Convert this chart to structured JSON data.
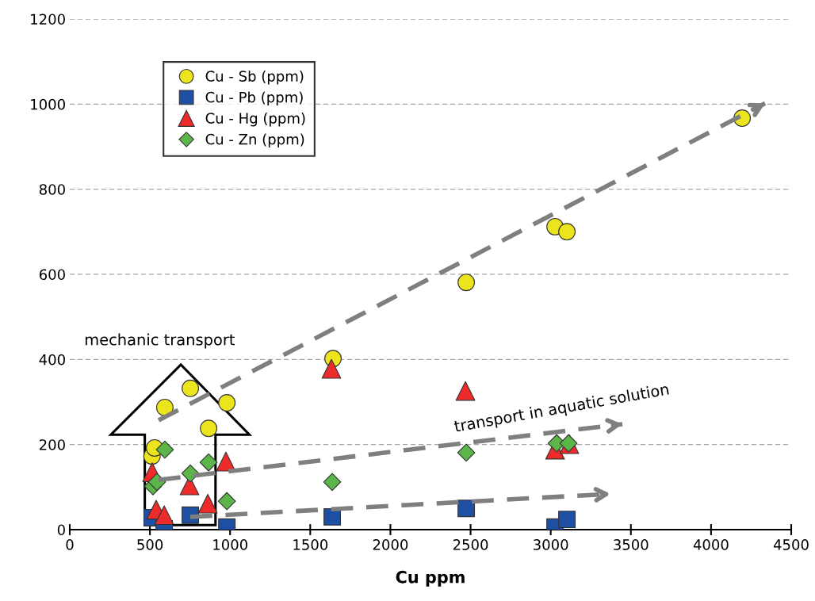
{
  "chart_data": {
    "type": "scatter",
    "xlabel": "Cu ppm",
    "xlim": [
      0,
      4500
    ],
    "xticks": [
      0,
      500,
      1000,
      1500,
      2000,
      2500,
      3000,
      3500,
      4000,
      4500
    ],
    "ylim": [
      0,
      1200
    ],
    "yticks": [
      0,
      200,
      400,
      600,
      800,
      1000,
      1200
    ],
    "grid": "y",
    "legend": "top left",
    "series": [
      {
        "name": "Cu - Sb (ppm)",
        "color": "#ece51d",
        "marker": "circle",
        "x": [
          513,
          529,
          593,
          752,
          866,
          980,
          1642,
          2473,
          3027,
          3101,
          4194
        ],
        "values": [
          173,
          192,
          287,
          332,
          238,
          298,
          402,
          581,
          712,
          700,
          967
        ]
      },
      {
        "name": "Cu - Pb (ppm)",
        "color": "#1f4fa3",
        "marker": "square",
        "x": [
          514,
          589,
          752,
          980,
          1637,
          2473,
          3027,
          3101
        ],
        "values": [
          28,
          2,
          34,
          6,
          30,
          50,
          6,
          24
        ]
      },
      {
        "name": "Cu - Hg (ppm)",
        "color": "#ee2b2b",
        "marker": "triangle",
        "x": [
          514,
          539,
          589,
          747,
          861,
          974,
          1632,
          2468,
          3027,
          3116
        ],
        "values": [
          135,
          47,
          34,
          104,
          61,
          160,
          378,
          326,
          188,
          201
        ]
      },
      {
        "name": "Cu - Zn (ppm)",
        "color": "#5bb548",
        "marker": "diamond",
        "x": [
          519,
          544,
          593,
          752,
          866,
          980,
          1637,
          2473,
          3037,
          3111
        ],
        "values": [
          102,
          112,
          188,
          132,
          158,
          67,
          112,
          181,
          203,
          203
        ]
      },
      {
        "type": "line",
        "color": "#7f7f7f",
        "line_style": "dashed",
        "x": [
          554,
          4337
        ],
        "values": [
          257,
          1002
        ]
      },
      {
        "type": "line",
        "color": "#7f7f7f",
        "line_style": "dashed",
        "x": [
          554,
          3447
        ],
        "values": [
          117,
          248
        ]
      },
      {
        "type": "line",
        "color": "#7f7f7f",
        "line_style": "dashed",
        "x": [
          752,
          3373
        ],
        "values": [
          30,
          84
        ]
      }
    ],
    "annotations": [
      "mechanic transport",
      "transport in aquatic solution"
    ]
  }
}
